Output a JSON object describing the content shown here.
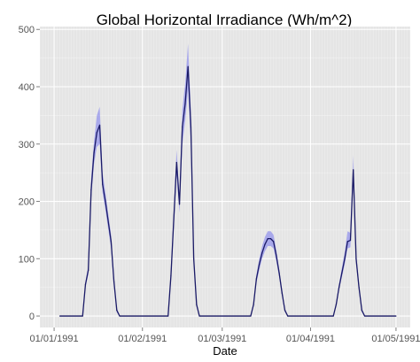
{
  "chart_data": {
    "type": "line",
    "title": "Global Horizontal Irradiance (Wh/m^2)",
    "xlabel": "Date",
    "ylabel": "",
    "x_type": "date",
    "xlim": [
      "1990-12-27",
      "1991-05-06"
    ],
    "ylim": [
      -20,
      505
    ],
    "grid": true,
    "background": "#e5e5e5",
    "gridline_color": "#ffffff",
    "line_color": "#1a1a66",
    "band_color": "#7777ee",
    "x_ticks": [
      {
        "date": "1991-01-01",
        "label": "01/01/1991"
      },
      {
        "date": "1991-02-01",
        "label": "01/02/1991"
      },
      {
        "date": "1991-03-01",
        "label": "01/03/1991"
      },
      {
        "date": "1991-04-01",
        "label": "01/04/1991"
      },
      {
        "date": "1991-05-01",
        "label": "01/05/1991"
      }
    ],
    "y_ticks": [
      0,
      100,
      200,
      300,
      400,
      500
    ],
    "series": [
      {
        "points": [
          {
            "x": "1991-01-03",
            "y": 0
          },
          {
            "x": "1991-01-11",
            "y": 0
          },
          {
            "x": "1991-01-12",
            "y": 55,
            "lo": 50,
            "hi": 60
          },
          {
            "x": "1991-01-13",
            "y": 80,
            "lo": 72,
            "hi": 88
          },
          {
            "x": "1991-01-14",
            "y": 220,
            "lo": 205,
            "hi": 240
          },
          {
            "x": "1991-01-15",
            "y": 285,
            "lo": 265,
            "hi": 305
          },
          {
            "x": "1991-01-16",
            "y": 320,
            "lo": 295,
            "hi": 350
          },
          {
            "x": "1991-01-17",
            "y": 333,
            "lo": 300,
            "hi": 365
          },
          {
            "x": "1991-01-18",
            "y": 230,
            "lo": 215,
            "hi": 250
          },
          {
            "x": "1991-01-19",
            "y": 200,
            "lo": 185,
            "hi": 215
          },
          {
            "x": "1991-01-21",
            "y": 130,
            "lo": 118,
            "hi": 142
          },
          {
            "x": "1991-01-22",
            "y": 60,
            "lo": 52,
            "hi": 66
          },
          {
            "x": "1991-01-23",
            "y": 10,
            "lo": 6,
            "hi": 14
          },
          {
            "x": "1991-01-24",
            "y": 0
          },
          {
            "x": "1991-02-10",
            "y": 0
          },
          {
            "x": "1991-02-11",
            "y": 70,
            "lo": 60,
            "hi": 80
          },
          {
            "x": "1991-02-13",
            "y": 268,
            "lo": 245,
            "hi": 290
          },
          {
            "x": "1991-02-14",
            "y": 195,
            "lo": 180,
            "hi": 210
          },
          {
            "x": "1991-02-15",
            "y": 330,
            "lo": 300,
            "hi": 360
          },
          {
            "x": "1991-02-16",
            "y": 370,
            "lo": 340,
            "hi": 405
          },
          {
            "x": "1991-02-17",
            "y": 435,
            "lo": 395,
            "hi": 475
          },
          {
            "x": "1991-02-18",
            "y": 330,
            "lo": 300,
            "hi": 360
          },
          {
            "x": "1991-02-19",
            "y": 100,
            "lo": 90,
            "hi": 110
          },
          {
            "x": "1991-02-20",
            "y": 20,
            "lo": 15,
            "hi": 25
          },
          {
            "x": "1991-02-21",
            "y": 0
          },
          {
            "x": "1991-03-11",
            "y": 0
          },
          {
            "x": "1991-03-12",
            "y": 20,
            "lo": 16,
            "hi": 24
          },
          {
            "x": "1991-03-13",
            "y": 65,
            "lo": 58,
            "hi": 72
          },
          {
            "x": "1991-03-14",
            "y": 90,
            "lo": 80,
            "hi": 100
          },
          {
            "x": "1991-03-15",
            "y": 110,
            "lo": 100,
            "hi": 122
          },
          {
            "x": "1991-03-16",
            "y": 125,
            "lo": 113,
            "hi": 138
          },
          {
            "x": "1991-03-17",
            "y": 135,
            "lo": 122,
            "hi": 148
          },
          {
            "x": "1991-03-18",
            "y": 135,
            "lo": 122,
            "hi": 148
          },
          {
            "x": "1991-03-19",
            "y": 130,
            "lo": 118,
            "hi": 142
          },
          {
            "x": "1991-03-20",
            "y": 105,
            "lo": 95,
            "hi": 115
          },
          {
            "x": "1991-03-21",
            "y": 75,
            "lo": 68,
            "hi": 82
          },
          {
            "x": "1991-03-22",
            "y": 40,
            "lo": 35,
            "hi": 45
          },
          {
            "x": "1991-03-23",
            "y": 10,
            "lo": 7,
            "hi": 13
          },
          {
            "x": "1991-03-24",
            "y": 0
          },
          {
            "x": "1991-04-09",
            "y": 0
          },
          {
            "x": "1991-04-10",
            "y": 20,
            "lo": 16,
            "hi": 24
          },
          {
            "x": "1991-04-11",
            "y": 50,
            "lo": 45,
            "hi": 56
          },
          {
            "x": "1991-04-12",
            "y": 75,
            "lo": 68,
            "hi": 84
          },
          {
            "x": "1991-04-13",
            "y": 100,
            "lo": 90,
            "hi": 112
          },
          {
            "x": "1991-04-14",
            "y": 130,
            "lo": 118,
            "hi": 148
          },
          {
            "x": "1991-04-15",
            "y": 132,
            "lo": 120,
            "hi": 145
          },
          {
            "x": "1991-04-16",
            "y": 255,
            "lo": 235,
            "hi": 280
          },
          {
            "x": "1991-04-17",
            "y": 100,
            "lo": 90,
            "hi": 110
          },
          {
            "x": "1991-04-18",
            "y": 50,
            "lo": 44,
            "hi": 56
          },
          {
            "x": "1991-04-19",
            "y": 10,
            "lo": 7,
            "hi": 13
          },
          {
            "x": "1991-04-20",
            "y": 0
          },
          {
            "x": "1991-05-01",
            "y": 0
          }
        ]
      }
    ]
  }
}
